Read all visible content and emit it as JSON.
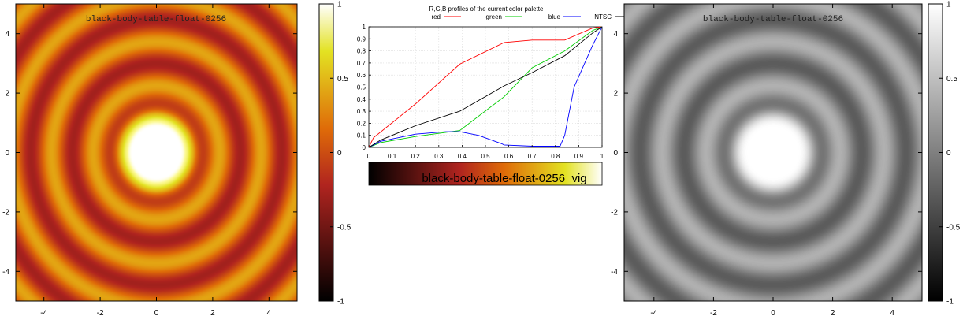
{
  "chart_data": [
    {
      "type": "heatmap",
      "title": "black-body-table-float-0256",
      "palette": "black-body",
      "x_ticks": [
        "-4",
        "-2",
        "0",
        "2",
        "4"
      ],
      "y_ticks": [
        "4",
        "2",
        "0",
        "-2",
        "-4"
      ],
      "xlim": [
        -5,
        5
      ],
      "ylim": [
        -5,
        5
      ],
      "colorbar_ticks": [
        "1",
        "0.5",
        "0",
        "-0.5",
        "-1"
      ],
      "colorbar_range": [
        -1,
        1
      ],
      "function": "radial damped oscillation, value = 1 at center"
    },
    {
      "type": "line",
      "title": "R,G,B profiles of the current color palette",
      "x_ticks": [
        "0",
        "0.1",
        "0.2",
        "0.3",
        "0.4",
        "0.5",
        "0.6",
        "0.7",
        "0.8",
        "0.9",
        "1"
      ],
      "y_ticks": [
        "1",
        "0.9",
        "0.8",
        "0.7",
        "0.6",
        "0.5",
        "0.4",
        "0.3",
        "0.2",
        "0.1",
        "0"
      ],
      "xlim": [
        0,
        1
      ],
      "ylim": [
        0,
        1
      ],
      "grid": true,
      "legend_position": "top",
      "colorbar_label": "black-body-table-float-0256_vig",
      "series": [
        {
          "name": "red",
          "color": "#ff0000",
          "x": [
            0,
            0.02,
            0.2,
            0.39,
            0.58,
            0.7,
            0.84,
            0.96,
            1.0
          ],
          "y": [
            0,
            0.08,
            0.36,
            0.69,
            0.87,
            0.89,
            0.89,
            0.99,
            1.0
          ]
        },
        {
          "name": "green",
          "color": "#00cc00",
          "x": [
            0,
            0.05,
            0.2,
            0.39,
            0.58,
            0.7,
            0.84,
            0.96,
            1.0
          ],
          "y": [
            0,
            0.04,
            0.09,
            0.14,
            0.42,
            0.66,
            0.8,
            0.97,
            1.0
          ]
        },
        {
          "name": "blue",
          "color": "#0000ff",
          "x": [
            0,
            0.05,
            0.2,
            0.33,
            0.39,
            0.47,
            0.57,
            0.58,
            0.7,
            0.82,
            0.84,
            0.88,
            0.96,
            1.0
          ],
          "y": [
            0,
            0.05,
            0.11,
            0.13,
            0.13,
            0.1,
            0.03,
            0.02,
            0.01,
            0.01,
            0.1,
            0.5,
            0.85,
            1.0
          ]
        },
        {
          "name": "NTSC",
          "color": "#000000",
          "x": [
            0,
            0.05,
            0.2,
            0.39,
            0.58,
            0.7,
            0.84,
            0.96,
            1.0
          ],
          "y": [
            0,
            0.06,
            0.18,
            0.3,
            0.51,
            0.62,
            0.76,
            0.95,
            1.0
          ]
        }
      ]
    },
    {
      "type": "heatmap",
      "title": "black-body-table-float-0256",
      "palette": "gray",
      "x_ticks": [
        "-4",
        "-2",
        "0",
        "2",
        "4"
      ],
      "y_ticks": [
        "4",
        "2",
        "0",
        "-2",
        "-4"
      ],
      "xlim": [
        -5,
        5
      ],
      "ylim": [
        -5,
        5
      ],
      "colorbar_ticks": [
        "1",
        "0.5",
        "0",
        "-0.5",
        "-1"
      ],
      "colorbar_range": [
        -1,
        1
      ]
    }
  ]
}
